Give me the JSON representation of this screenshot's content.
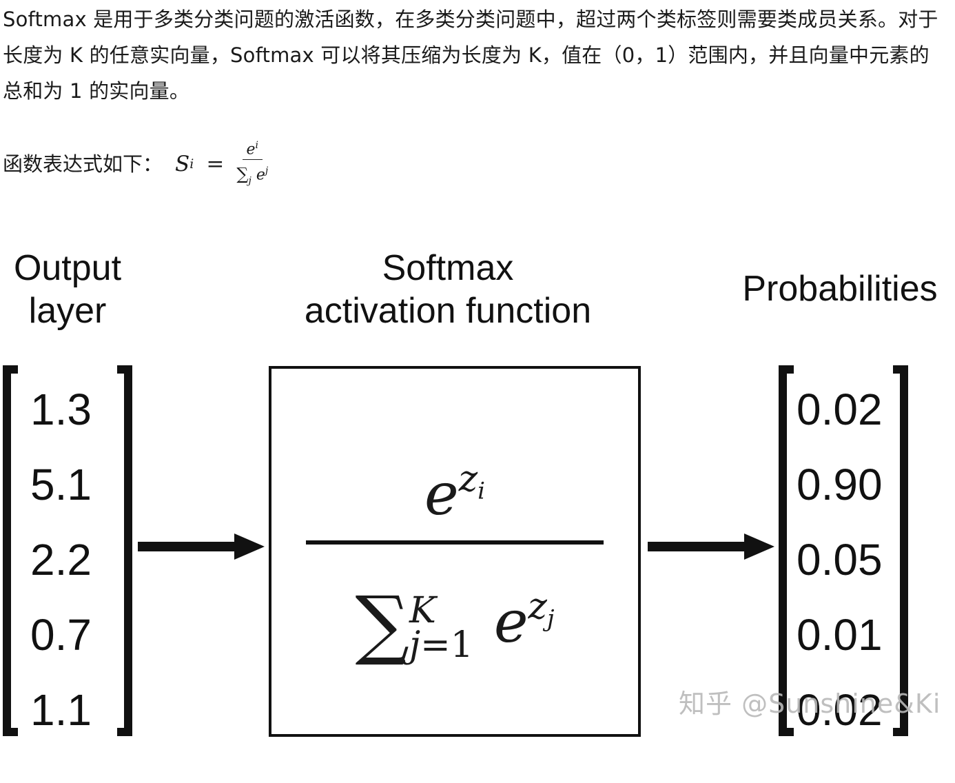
{
  "intro_text": "Softmax 是用于多类分类问题的激活函数，在多类分类问题中，超过两个类标签则需要类成员关系。对于长度为 K 的任意实向量，Softmax 可以将其压缩为长度为 K，值在（0，1）范围内，并且向量中元素的总和为 1 的实向量。",
  "formula_label": "函数表达式如下：",
  "formula": {
    "lhs": "S",
    "lhs_sub": "i",
    "eq": "=",
    "num_base": "e",
    "num_sup": "i",
    "den_sigma": "∑",
    "den_sigma_sub": "j",
    "den_base": "e",
    "den_sup": "j"
  },
  "diagram": {
    "header_output_line1": "Output",
    "header_output_line2": "layer",
    "header_softmax_line1": "Softmax",
    "header_softmax_line2": "activation function",
    "header_prob": "Probabilities",
    "output_values": [
      "1.3",
      "5.1",
      "2.2",
      "0.7",
      "1.1"
    ],
    "probabilities": [
      "0.02",
      "0.90",
      "0.05",
      "0.01",
      "0.02"
    ],
    "box_numerator_base": "e",
    "box_numerator_sup": "z",
    "box_numerator_sup_sub": "i",
    "box_sigma": "∑",
    "box_sigma_upper": "K",
    "box_sigma_lower_var": "j",
    "box_sigma_lower_rest": "=1",
    "box_denominator_base": "e",
    "box_denominator_sup": "z",
    "box_denominator_sup_sub": "j",
    "watermark": "知乎 @Sunshine&Ki"
  }
}
